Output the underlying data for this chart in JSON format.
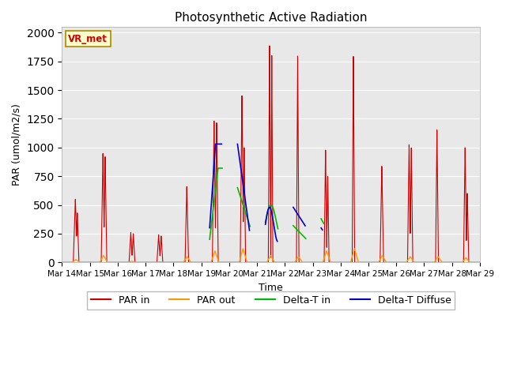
{
  "title": "Photosynthetic Active Radiation",
  "xlabel": "Time",
  "ylabel": "PAR (umol/m2/s)",
  "ylim": [
    0,
    2050
  ],
  "annotation": "VR_met",
  "bg_color": "#e8e8e8",
  "legend_entries": [
    "PAR in",
    "PAR out",
    "Delta-T in",
    "Delta-T Diffuse"
  ],
  "legend_colors": [
    "#cc0000",
    "#ff9900",
    "#00cc00",
    "#0000cc"
  ],
  "xtick_labels": [
    "Mar 14",
    "Mar 15",
    "Mar 16",
    "Mar 17",
    "Mar 18",
    "Mar 19",
    "Mar 20",
    "Mar 21",
    "Mar 22",
    "Mar 23",
    "Mar 24",
    "Mar 25",
    "Mar 26",
    "Mar 27",
    "Mar 28",
    "Mar 29"
  ],
  "num_days": 15,
  "par_in_peaks": [
    550,
    950,
    260,
    240,
    660,
    1230,
    1450,
    1900,
    1800,
    980,
    1800,
    840,
    1030,
    1160,
    1000
  ],
  "par_in_peak2": [
    430,
    920,
    250,
    230,
    0,
    1220,
    1000,
    1810,
    0,
    750,
    0,
    0,
    1000,
    0,
    600
  ],
  "par_out_peaks": [
    25,
    60,
    10,
    5,
    50,
    100,
    120,
    60,
    50,
    100,
    120,
    60,
    50,
    50,
    40
  ]
}
